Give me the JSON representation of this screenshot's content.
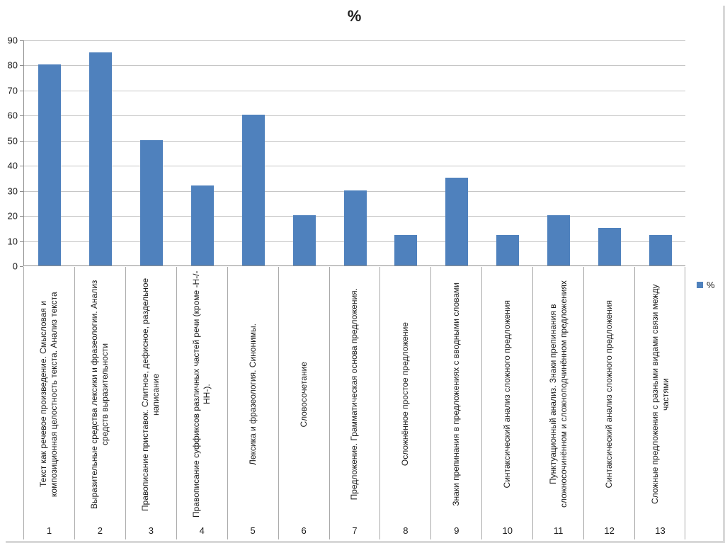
{
  "chart_data": {
    "type": "bar",
    "title": "%",
    "xlabel": "",
    "ylabel": "",
    "ylim": [
      0,
      90
    ],
    "yticks": [
      0,
      10,
      20,
      30,
      40,
      50,
      60,
      70,
      80,
      90
    ],
    "grid": true,
    "legend": {
      "label": "%",
      "position": "right"
    },
    "bar_color": "#4F81BD",
    "categories": [
      "1",
      "2",
      "3",
      "4",
      "5",
      "6",
      "7",
      "8",
      "9",
      "10",
      "11",
      "12",
      "13"
    ],
    "category_labels": [
      "Текст как речевое произведение. Смысловая и композиционная целостность текста. Анализ текста",
      "Выразительные средства лексики и фразеологии. Анализ средств выразительности",
      "Правописание приставок. Слитное, дефисное, раздельное написание",
      "Правописание суффиксов различных частей речи (кроме -Н-/-НН-).",
      "Лексика и фразеология. Синонимы.",
      "Словосочетание",
      "Предложение. Грамматическая основа предложения.",
      "Осложнённое простое предложение",
      "Знаки препинания в предложениях с вводными словами",
      "Синтаксический анализ сложного предложения",
      "Пунктуационный анализ. Знаки препинания в сложносочинённом и сложноподчинённом предложениях",
      "Синтаксический анализ сложного предложения",
      "Сложные предложения с разными видами связи между частями"
    ],
    "values": [
      80,
      85,
      50,
      32,
      60,
      20,
      30,
      12,
      35,
      12,
      20,
      15,
      12
    ]
  },
  "colors": {
    "bar": "#4F81BD",
    "gridline": "#C6C6C6",
    "axis": "#8E8E8E",
    "band_line": "#A9A9A9",
    "text": "#1A1A1A",
    "background": "#FFFFFF"
  }
}
